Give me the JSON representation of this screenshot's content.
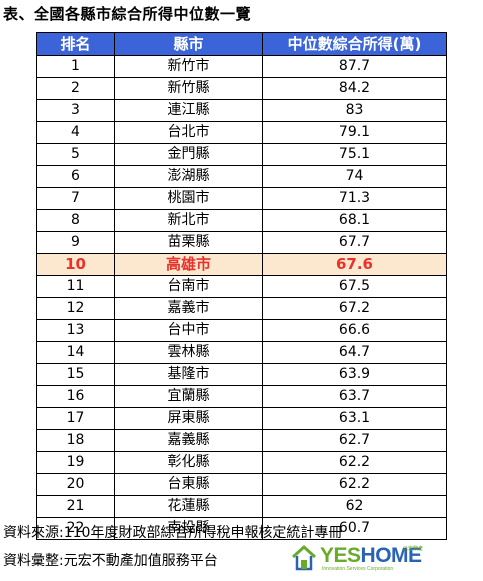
{
  "title": "表、全國各縣市綜合所得中位數一覽",
  "table": {
    "headers": [
      "排名",
      "縣市",
      "中位數綜合所得(萬)"
    ],
    "highlight_rank": "10",
    "highlight_color": "#e8322b",
    "highlight_bg": "#fce7cf",
    "header_bg": "#3a64d8",
    "rows": [
      {
        "rank": "1",
        "city": "新竹市",
        "value": "87.7"
      },
      {
        "rank": "2",
        "city": "新竹縣",
        "value": "84.2"
      },
      {
        "rank": "3",
        "city": "連江縣",
        "value": "83"
      },
      {
        "rank": "4",
        "city": "台北市",
        "value": "79.1"
      },
      {
        "rank": "5",
        "city": "金門縣",
        "value": "75.1"
      },
      {
        "rank": "6",
        "city": "澎湖縣",
        "value": "74"
      },
      {
        "rank": "7",
        "city": "桃園市",
        "value": "71.3"
      },
      {
        "rank": "8",
        "city": "新北市",
        "value": "68.1"
      },
      {
        "rank": "9",
        "city": "苗栗縣",
        "value": "67.7"
      },
      {
        "rank": "10",
        "city": "高雄市",
        "value": "67.6"
      },
      {
        "rank": "11",
        "city": "台南市",
        "value": "67.5"
      },
      {
        "rank": "12",
        "city": "嘉義市",
        "value": "67.2"
      },
      {
        "rank": "13",
        "city": "台中市",
        "value": "66.6"
      },
      {
        "rank": "14",
        "city": "雲林縣",
        "value": "64.7"
      },
      {
        "rank": "15",
        "city": "基隆市",
        "value": "63.9"
      },
      {
        "rank": "16",
        "city": "宜蘭縣",
        "value": "63.7"
      },
      {
        "rank": "17",
        "city": "屏東縣",
        "value": "63.1"
      },
      {
        "rank": "18",
        "city": "嘉義縣",
        "value": "62.7"
      },
      {
        "rank": "19",
        "city": "彰化縣",
        "value": "62.2"
      },
      {
        "rank": "20",
        "city": "台東縣",
        "value": "62.2"
      },
      {
        "rank": "21",
        "city": "花蓮縣",
        "value": "62"
      },
      {
        "rank": "22",
        "city": "南投縣",
        "value": "60.7"
      }
    ]
  },
  "footer": {
    "source": "資料來源:110年度財政部綜合所得稅申報核定統計專冊",
    "compiled": "資料彙整:元宏不動產加值服務平台"
  },
  "logo": {
    "brand_yes": "YES",
    "brand_home": "HOME",
    "chinese": "元宏數產",
    "tagline": "Innovation Services Corporation",
    "icon": "house-icon"
  }
}
